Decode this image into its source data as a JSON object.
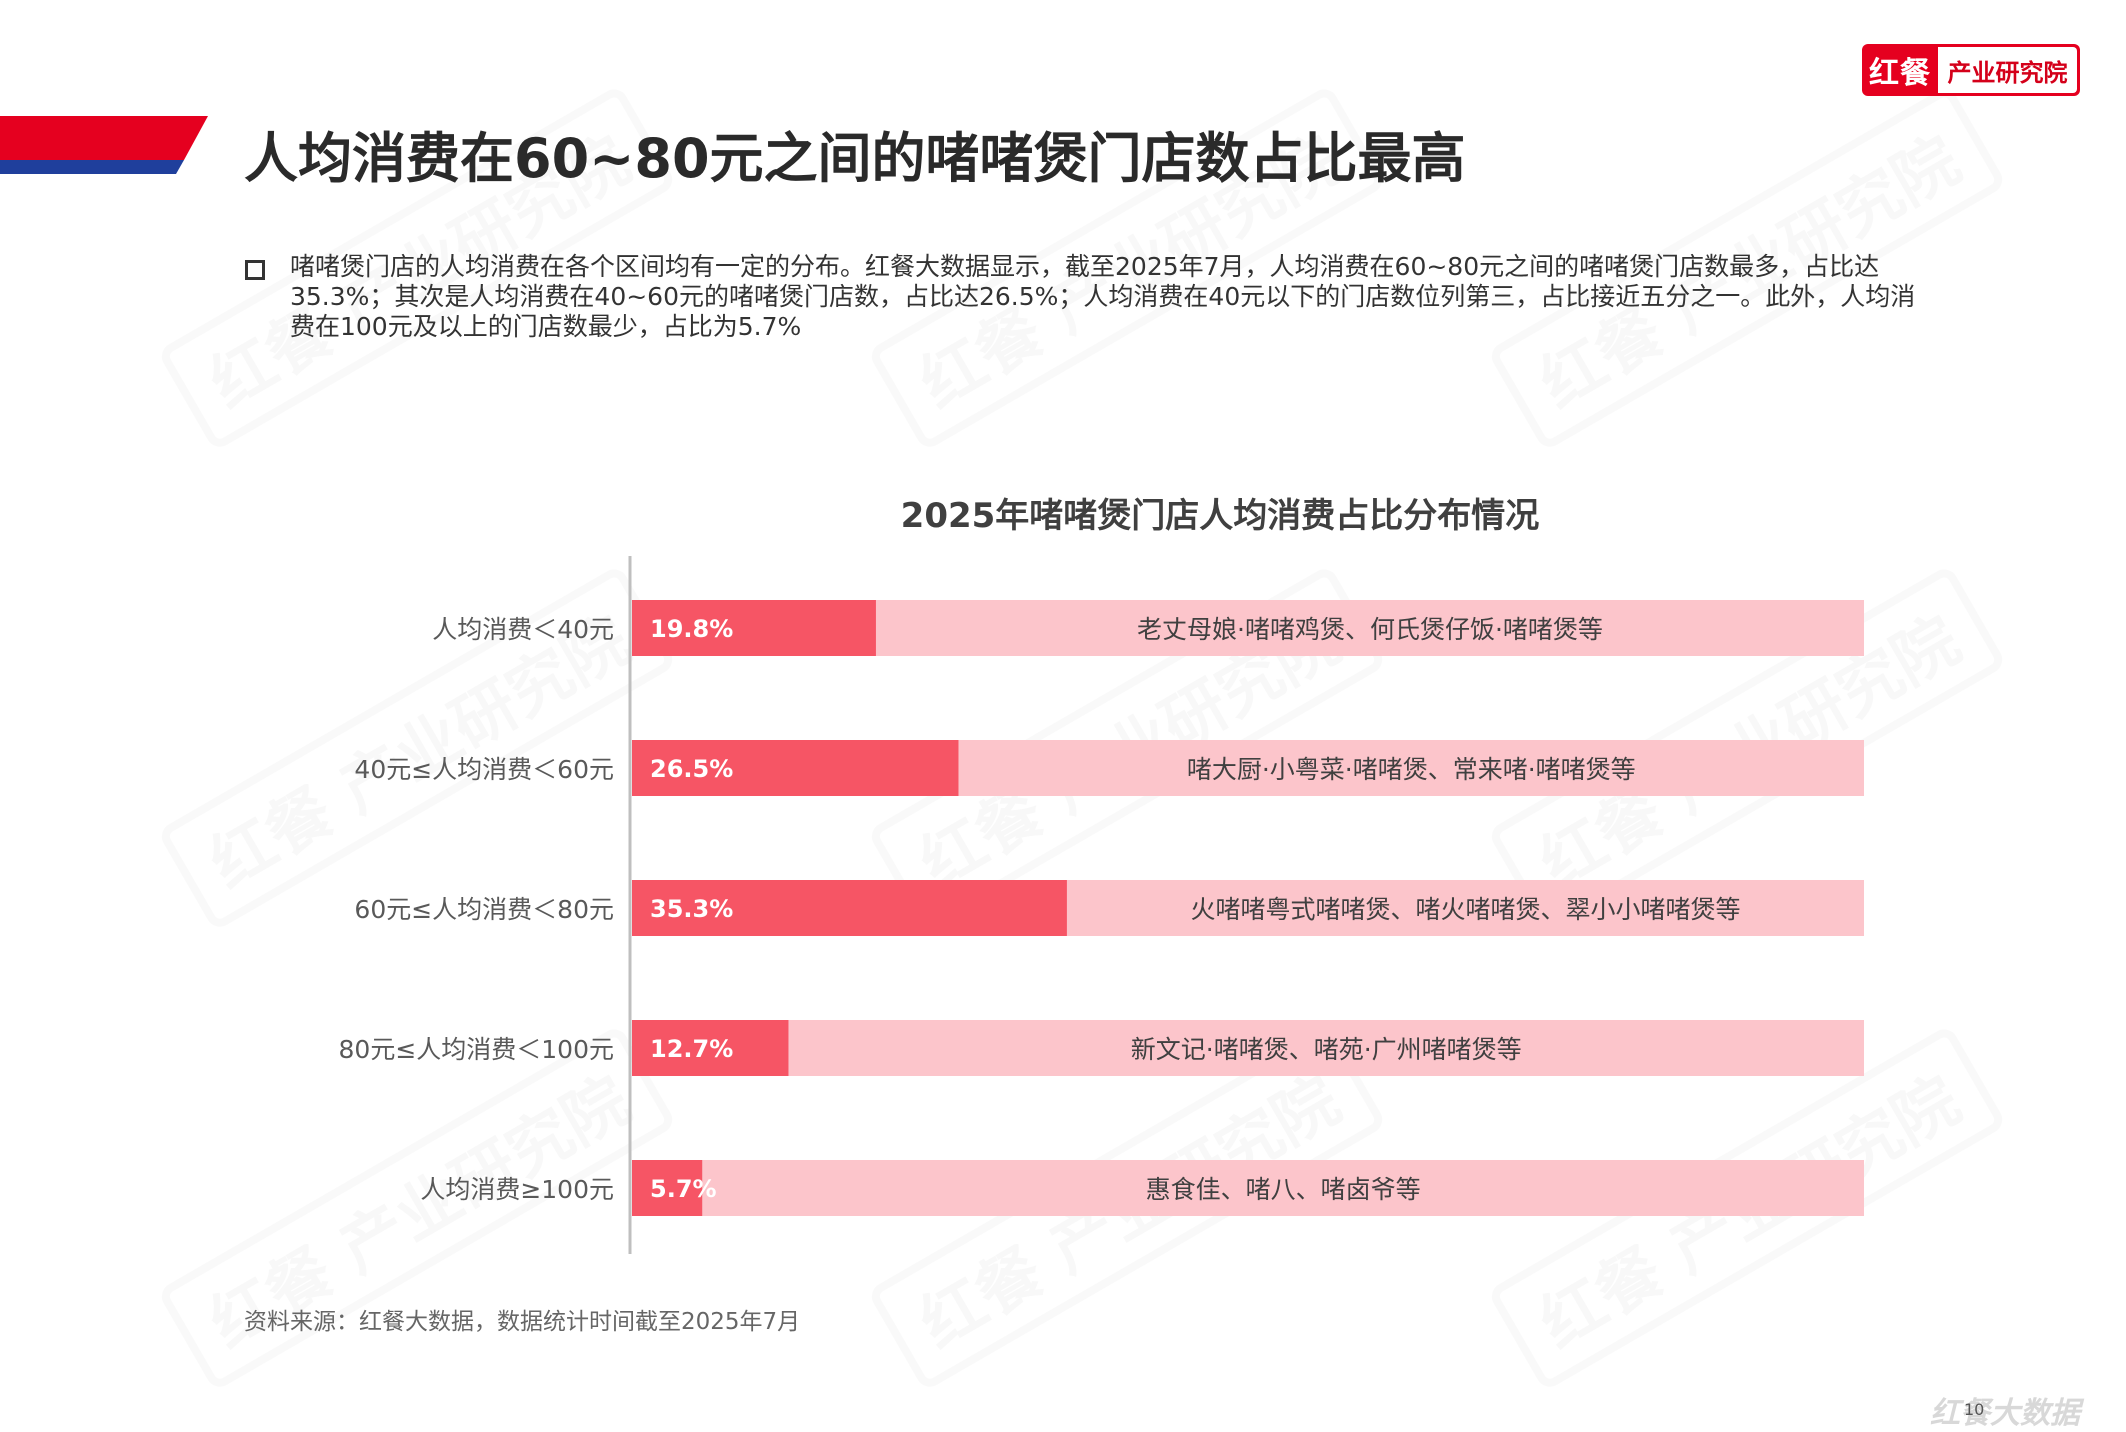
{
  "logo": {
    "mark": "红餐",
    "text": "产业研究院"
  },
  "page_title": "人均消费在60~80元之间的啫啫煲门店数占比最高",
  "summary": "啫啫煲门店的人均消费在各个区间均有一定的分布。红餐大数据显示，截至2025年7月，人均消费在60~80元之间的啫啫煲门店数最多，占比达35.3%；其次是人均消费在40~60元的啫啫煲门店数，占比达26.5%；人均消费在40元以下的门店数位列第三，占比接近五分之一。此外，人均消费在100元及以上的门店数最少，占比为5.7%",
  "colors": {
    "primary": "#f65565",
    "background_bar": "#fcc5cb",
    "axis": "#bfbfbf",
    "brand_red": "#e5001f",
    "brand_blue": "#1f3f9c"
  },
  "watermark": "红餐 产业研究院",
  "chart_data": {
    "type": "bar",
    "orientation": "horizontal",
    "title": "2025年啫啫煲门店人均消费占比分布情况",
    "categories": [
      "人均消费＜40元",
      "40元≤人均消费＜60元",
      "60元≤人均消费＜80元",
      "80元≤人均消费＜100元",
      "人均消费≥100元"
    ],
    "values": [
      19.8,
      26.5,
      35.3,
      12.7,
      5.7
    ],
    "value_labels": [
      "19.8%",
      "26.5%",
      "35.3%",
      "12.7%",
      "5.7%"
    ],
    "annotations": [
      "老丈母娘·啫啫鸡煲、何氏煲仔饭·啫啫煲等",
      "啫大厨·小粤菜·啫啫煲、常来啫·啫啫煲等",
      "火啫啫粤式啫啫煲、啫火啫啫煲、翠小小啫啫煲等",
      "新文记·啫啫煲、啫苑·广州啫啫煲等",
      "惠食佳、啫八、啫卤爷等"
    ],
    "xlim": [
      0,
      100
    ],
    "unit": "%",
    "grid": false,
    "legend": "none"
  },
  "source": "资料来源：红餐大数据，数据统计时间截至2025年7月",
  "page_number": "10",
  "footer_brand": "红餐大数据"
}
